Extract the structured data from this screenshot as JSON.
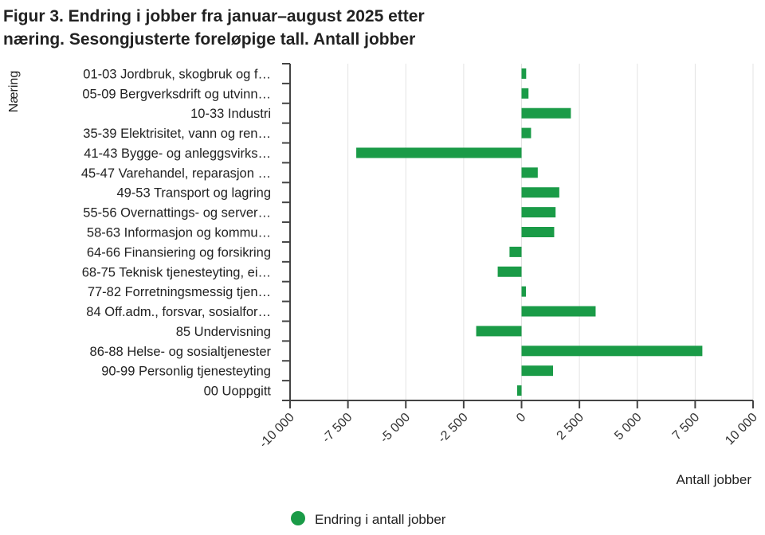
{
  "chart_data": {
    "type": "bar",
    "orientation": "horizontal",
    "title_lines": [
      "Figur 3. Endring i jobber fra januar–august 2025 etter",
      "næring. Sesongjusterte foreløpige tall. Antall jobber"
    ],
    "ylabel": "Næring",
    "xlabel": "Antall jobber",
    "xlim": [
      -10000,
      10000
    ],
    "xticks": [
      -10000,
      -7500,
      -5000,
      -2500,
      0,
      2500,
      5000,
      7500,
      10000
    ],
    "xtick_labels": [
      "-10 000",
      "-7 500",
      "-5 000",
      "-2 500",
      "0",
      "2 500",
      "5 000",
      "7 500",
      "10 000"
    ],
    "grid": true,
    "legend_position": "bottom",
    "color": "#1a9b47",
    "categories": [
      "01-03 Jordbruk, skogbruk og f…",
      "05-09 Bergverksdrift og utvinn…",
      "10-33 Industri",
      "35-39 Elektrisitet, vann og ren…",
      "41-43 Bygge- og anleggsvirks…",
      "45-47 Varehandel, reparasjon …",
      "49-53 Transport og lagring",
      "55-56 Overnattings- og server…",
      "58-63 Informasjon og kommu…",
      "64-66 Finansiering og forsikring",
      "68-75 Teknisk tjenesteyting, ei…",
      "77-82 Forretningsmessig tjen…",
      "84 Off.adm., forsvar, sosialfor…",
      "85 Undervisning",
      "86-88 Helse- og sosialtjenester",
      "90-99 Personlig tjenesteyting",
      "00 Uoppgitt"
    ],
    "series": [
      {
        "name": "Endring i antall jobber",
        "values": [
          200,
          300,
          2130,
          410,
          -7140,
          700,
          1630,
          1470,
          1410,
          -520,
          -1030,
          190,
          3200,
          -1960,
          7810,
          1360,
          -190
        ]
      }
    ]
  }
}
